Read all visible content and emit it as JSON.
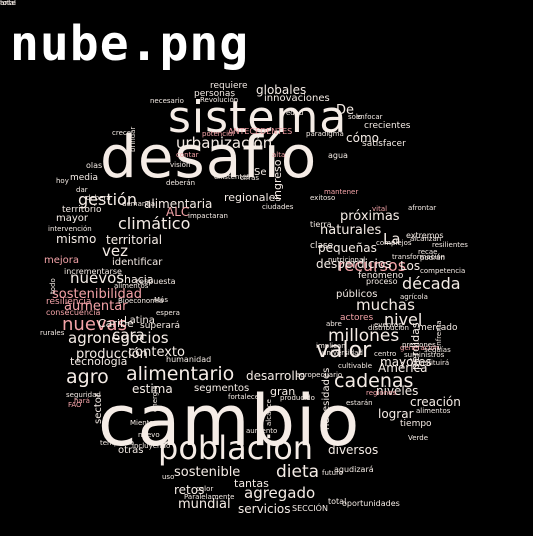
{
  "title": "nube.png",
  "colors": {
    "background": "#000000",
    "title": "#ffffff",
    "primary_word": "#f5ece6",
    "secondary_word": "#f1ddd6",
    "accent_word": "#f4a3a8",
    "faint_word": "#8a7c78"
  },
  "words": [
    {
      "text": "cambio",
      "tone": "primary"
    },
    {
      "text": "desafío",
      "tone": "primary"
    },
    {
      "text": "sistema",
      "tone": "primary"
    },
    {
      "text": "población",
      "tone": "primary"
    },
    {
      "text": "alimentario",
      "tone": "primary"
    },
    {
      "text": "agro",
      "tone": "primary"
    },
    {
      "text": "valor",
      "tone": "primary"
    },
    {
      "text": "cadenas",
      "tone": "primary"
    },
    {
      "text": "nuevas",
      "tone": "accent"
    },
    {
      "text": "recursos",
      "tone": "accent"
    },
    {
      "text": "millones",
      "tone": "primary"
    },
    {
      "text": "climático",
      "tone": "primary"
    },
    {
      "text": "gestión",
      "tone": "primary"
    },
    {
      "text": "urbanización",
      "tone": "primary"
    },
    {
      "text": "agronegocios",
      "tone": "primary"
    },
    {
      "text": "dieta",
      "tone": "primary"
    },
    {
      "text": "agregado",
      "tone": "primary"
    },
    {
      "text": "sostenible",
      "tone": "primary"
    },
    {
      "text": "nivel",
      "tone": "primary"
    },
    {
      "text": "década",
      "tone": "primary"
    },
    {
      "text": "muchas",
      "tone": "primary"
    },
    {
      "text": "vez",
      "tone": "primary"
    },
    {
      "text": "cara",
      "tone": "primary"
    },
    {
      "text": "nuevos",
      "tone": "primary"
    },
    {
      "text": "producción",
      "tone": "primary"
    },
    {
      "text": "contexto",
      "tone": "primary"
    },
    {
      "text": "mundial",
      "tone": "primary"
    },
    {
      "text": "servicios",
      "tone": "primary"
    },
    {
      "text": "retos",
      "tone": "primary"
    },
    {
      "text": "tantas",
      "tone": "primary"
    },
    {
      "text": "sostenibilidad",
      "tone": "accent"
    },
    {
      "text": "aumentar",
      "tone": "accent"
    },
    {
      "text": "próximas",
      "tone": "primary"
    },
    {
      "text": "naturales",
      "tone": "primary"
    },
    {
      "text": "pequeñas",
      "tone": "primary"
    },
    {
      "text": "desperdicios",
      "tone": "primary"
    },
    {
      "text": "mayores",
      "tone": "primary"
    },
    {
      "text": "América",
      "tone": "primary"
    },
    {
      "text": "niveles",
      "tone": "primary"
    },
    {
      "text": "creación",
      "tone": "primary"
    },
    {
      "text": "lograr",
      "tone": "primary"
    },
    {
      "text": "diversos",
      "tone": "primary"
    },
    {
      "text": "desarrollo",
      "tone": "primary"
    },
    {
      "text": "estima",
      "tone": "primary"
    },
    {
      "text": "segmentos",
      "tone": "primary"
    },
    {
      "text": "Latina",
      "tone": "primary"
    },
    {
      "text": "Caribe",
      "tone": "primary"
    },
    {
      "text": "territorial",
      "tone": "primary"
    },
    {
      "text": "mismo",
      "tone": "primary"
    },
    {
      "text": "alimentaria",
      "tone": "primary"
    },
    {
      "text": "regionales",
      "tone": "primary"
    },
    {
      "text": "globales",
      "tone": "primary"
    },
    {
      "text": "innovaciones",
      "tone": "primary"
    },
    {
      "text": "cómo",
      "tone": "primary"
    },
    {
      "text": "crecientes",
      "tone": "primary"
    },
    {
      "text": "De",
      "tone": "primary"
    },
    {
      "text": "La",
      "tone": "primary"
    },
    {
      "text": "Los",
      "tone": "primary"
    },
    {
      "text": "ALC",
      "tone": "accent"
    },
    {
      "text": "hacia",
      "tone": "primary"
    },
    {
      "text": "identificar",
      "tone": "primary"
    },
    {
      "text": "tecnología",
      "tone": "primary"
    },
    {
      "text": "mejora",
      "tone": "accent"
    },
    {
      "text": "resiliencia",
      "tone": "accent"
    },
    {
      "text": "superará",
      "tone": "primary"
    },
    {
      "text": "humanidad",
      "tone": "primary"
    },
    {
      "text": "gran",
      "tone": "primary"
    },
    {
      "text": "otras",
      "tone": "primary"
    },
    {
      "text": "ingreso",
      "tone": "primary"
    },
    {
      "text": "necesidades",
      "tone": "primary"
    },
    {
      "text": "pérdidas",
      "tone": "primary"
    },
    {
      "text": "públicos",
      "tone": "primary"
    },
    {
      "text": "mercado",
      "tone": "primary"
    },
    {
      "text": "actores",
      "tone": "accent"
    },
    {
      "text": "fenómeno",
      "tone": "primary"
    },
    {
      "text": "proceso",
      "tone": "primary"
    },
    {
      "text": "tiempo",
      "tone": "primary"
    },
    {
      "text": "clase",
      "tone": "primary"
    },
    {
      "text": "tierra",
      "tone": "primary"
    },
    {
      "text": "mayor",
      "tone": "primary"
    },
    {
      "text": "territorio",
      "tone": "primary"
    },
    {
      "text": "media",
      "tone": "primary"
    },
    {
      "text": "personas",
      "tone": "primary"
    },
    {
      "text": "requiere",
      "tone": "primary"
    },
    {
      "text": "ANTECEDENTES",
      "tone": "accent"
    },
    {
      "text": "SECCIÓN",
      "tone": "primary"
    },
    {
      "text": "total",
      "tone": "primary"
    },
    {
      "text": "sector",
      "tone": "primary"
    },
    {
      "text": "Se",
      "tone": "primary"
    },
    {
      "text": "respuesta",
      "tone": "primary"
    },
    {
      "text": "incrementarse",
      "tone": "primary"
    },
    {
      "text": "consecuencia",
      "tone": "accent"
    },
    {
      "text": "satisfacer",
      "tone": "primary"
    },
    {
      "text": "agua",
      "tone": "primary"
    },
    {
      "text": "extremos",
      "tone": "primary"
    },
    {
      "text": "agudizará",
      "tone": "primary"
    },
    {
      "text": "futuro",
      "tone": "primary"
    },
    {
      "text": "Verde",
      "tone": "primary"
    },
    {
      "text": "cultivable",
      "tone": "primary"
    },
    {
      "text": "deberán",
      "tone": "primary"
    },
    {
      "text": "potencial",
      "tone": "accent"
    },
    {
      "text": "dar",
      "tone": "primary"
    },
    {
      "text": "olas",
      "tone": "primary"
    },
    {
      "text": "deberá",
      "tone": "primary"
    },
    {
      "text": "crece",
      "tone": "primary"
    },
    {
      "text": "temprana",
      "tone": "primary"
    },
    {
      "text": "Paralelamente",
      "tone": "primary"
    },
    {
      "text": "seguridad",
      "tone": "primary"
    },
    {
      "text": "Revolución",
      "tone": "primary"
    },
    {
      "text": "necesario",
      "tone": "primary"
    },
    {
      "text": "enfocar",
      "tone": "primary"
    },
    {
      "text": "generación",
      "tone": "accent"
    },
    {
      "text": "suministros",
      "tone": "primary"
    },
    {
      "text": "competencia",
      "tone": "primary"
    },
    {
      "text": "distribución",
      "tone": "primary"
    },
    {
      "text": "sequías",
      "tone": "primary"
    },
    {
      "text": "enfrenta",
      "tone": "primary"
    },
    {
      "text": "afrontar",
      "tone": "primary"
    },
    {
      "text": "complejos",
      "tone": "primary"
    },
    {
      "text": "alcanzan",
      "tone": "primary"
    },
    {
      "text": "resilientes",
      "tone": "primary"
    },
    {
      "text": "recae",
      "tone": "primary"
    },
    {
      "text": "podrán",
      "tone": "primary"
    },
    {
      "text": "eventos",
      "tone": "primary"
    },
    {
      "text": "centro",
      "tone": "primary"
    },
    {
      "text": "abre",
      "tone": "primary"
    },
    {
      "text": "implican",
      "tone": "primary"
    },
    {
      "text": "agropecuario",
      "tone": "primary"
    },
    {
      "text": "constituirá",
      "tone": "primary"
    },
    {
      "text": "universidad",
      "tone": "primary"
    },
    {
      "text": "regiones",
      "tone": "accent"
    },
    {
      "text": "producido",
      "tone": "primary"
    },
    {
      "text": "fortalecer",
      "tone": "primary"
    },
    {
      "text": "alimentos",
      "tone": "primary"
    },
    {
      "text": "demanda",
      "tone": "primary"
    },
    {
      "text": "incluyendo",
      "tone": "primary"
    },
    {
      "text": "calor",
      "tone": "primary"
    },
    {
      "text": "uso",
      "tone": "primary"
    },
    {
      "text": "existentes",
      "tone": "primary"
    },
    {
      "text": "cifras",
      "tone": "primary"
    },
    {
      "text": "ciudades",
      "tone": "primary"
    },
    {
      "text": "paradigma",
      "tone": "primary"
    },
    {
      "text": "brindar",
      "tone": "primary"
    },
    {
      "text": "intervención",
      "tone": "primary"
    },
    {
      "text": "Mientras",
      "tone": "primary"
    },
    {
      "text": "alcance",
      "tone": "primary"
    },
    {
      "text": "nutricional",
      "tone": "primary"
    },
    {
      "text": "transformación",
      "tone": "primary"
    },
    {
      "text": "agrícola",
      "tone": "primary"
    },
    {
      "text": "presiones",
      "tone": "primary"
    },
    {
      "text": "energía",
      "tone": "primary"
    },
    {
      "text": "rurales",
      "tone": "primary"
    },
    {
      "text": "todo",
      "tone": "primary"
    },
    {
      "text": "impactaran",
      "tone": "primary"
    },
    {
      "text": "mantener",
      "tone": "accent"
    },
    {
      "text": "exitoso",
      "tone": "primary"
    },
    {
      "text": "espera",
      "tone": "primary"
    },
    {
      "text": "solo",
      "tone": "primary"
    },
    {
      "text": "Bioeconomía",
      "tone": "primary"
    },
    {
      "text": "aumento",
      "tone": "primary"
    },
    {
      "text": "nuevo",
      "tone": "primary"
    },
    {
      "text": "estarán",
      "tone": "primary"
    },
    {
      "text": "alimentos",
      "tone": "primary"
    },
    {
      "text": "hará",
      "tone": "accent"
    },
    {
      "text": "FAO",
      "tone": "accent"
    },
    {
      "text": "Más",
      "tone": "primary"
    },
    {
      "text": "visión",
      "tone": "primary"
    },
    {
      "text": "vital",
      "tone": "accent"
    },
    {
      "text": "contar",
      "tone": "accent"
    },
    {
      "text": "alta",
      "tone": "accent"
    },
    {
      "text": "hoy",
      "tone": "primary"
    },
    {
      "text": "edad",
      "tone": "primary"
    },
    {
      "text": "oportunidades",
      "tone": "primary"
    },
    {
      "text": "ante",
      "tone": "primary"
    },
    {
      "text": "total",
      "tone": "primary"
    }
  ]
}
